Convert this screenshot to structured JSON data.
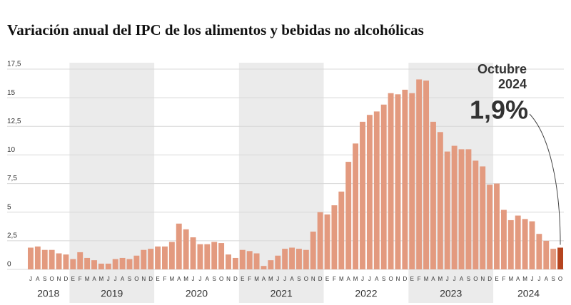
{
  "chart_data": {
    "type": "bar",
    "title": "Variación anual del IPC de los alimentos y bebidas no alcohólicas",
    "categories": [
      "J",
      "A",
      "S",
      "O",
      "N",
      "D",
      "E",
      "F",
      "M",
      "A",
      "M",
      "J",
      "J",
      "A",
      "S",
      "O",
      "N",
      "D",
      "E",
      "F",
      "M",
      "A",
      "M",
      "J",
      "J",
      "A",
      "S",
      "O",
      "N",
      "D",
      "E",
      "F",
      "M",
      "A",
      "M",
      "J",
      "J",
      "A",
      "S",
      "O",
      "N",
      "D",
      "E",
      "F",
      "M",
      "A",
      "M",
      "J",
      "J",
      "A",
      "S",
      "O",
      "N",
      "D",
      "E",
      "F",
      "M",
      "A",
      "M",
      "J",
      "J",
      "A",
      "S",
      "O",
      "N",
      "D",
      "E",
      "F",
      "M",
      "A",
      "M",
      "J",
      "J",
      "A",
      "S",
      "O"
    ],
    "values": [
      1.9,
      2.0,
      1.7,
      1.7,
      1.4,
      1.3,
      0.9,
      1.5,
      1.0,
      0.8,
      0.5,
      0.5,
      0.9,
      1.0,
      0.9,
      1.2,
      1.7,
      1.8,
      2.0,
      2.0,
      2.4,
      4.0,
      3.5,
      2.8,
      2.2,
      2.2,
      2.4,
      2.3,
      1.3,
      1.0,
      1.7,
      1.6,
      1.4,
      0.3,
      0.8,
      1.2,
      1.8,
      1.9,
      1.8,
      1.7,
      3.3,
      5.0,
      4.8,
      5.6,
      6.8,
      9.4,
      11.0,
      12.9,
      13.5,
      13.8,
      14.4,
      15.4,
      15.3,
      15.7,
      15.4,
      16.6,
      16.5,
      12.9,
      12.0,
      10.3,
      10.8,
      10.5,
      10.5,
      9.5,
      9.0,
      7.4,
      7.5,
      5.2,
      4.3,
      4.7,
      4.4,
      4.2,
      3.1,
      2.5,
      1.8,
      1.9
    ],
    "value_labels": [
      null,
      null,
      null,
      null,
      null,
      null,
      null,
      null,
      null,
      null,
      null,
      null,
      null,
      null,
      null,
      null,
      null,
      null,
      null,
      null,
      null,
      null,
      null,
      null,
      null,
      null,
      null,
      null,
      null,
      null,
      null,
      null,
      null,
      null,
      null,
      null,
      null,
      null,
      null,
      null,
      null,
      null,
      null,
      null,
      null,
      null,
      null,
      null,
      null,
      null,
      null,
      null,
      null,
      null,
      null,
      null,
      null,
      null,
      null,
      null,
      null,
      null,
      null,
      null,
      null,
      null,
      null,
      null,
      null,
      null,
      null,
      null,
      null,
      null,
      null,
      "1,9%"
    ],
    "color": "#e39a7f",
    "highlight_color": "#b5441f",
    "year_labels": [
      "2018",
      "2019",
      "2020",
      "2021",
      "2022",
      "2023",
      "2024"
    ],
    "annotation": [
      "Octubre",
      "2024"
    ],
    "ylim": [
      0,
      17.5
    ],
    "yticks": [
      0,
      {
        "value": 2.5,
        "label": "2,5"
      },
      5,
      {
        "value": 7.5,
        "label": "7,5"
      },
      10,
      {
        "value": 12.5,
        "label": "12,5"
      },
      15,
      {
        "value": 17.5,
        "label": "17,5"
      }
    ],
    "grid": true
  }
}
